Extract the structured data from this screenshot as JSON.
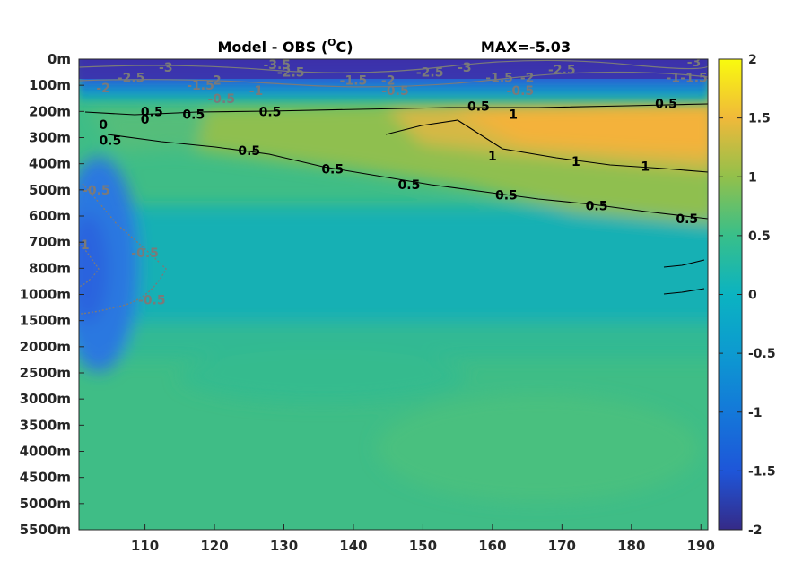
{
  "chart_data": {
    "type": "heatmap",
    "title": "Model - OBS (°C)",
    "title_main": "Model - OBS (",
    "title_sup": "O",
    "title_unit": "C)",
    "max_annotation": "MAX=-5.03",
    "xlabel": "",
    "ylabel": "",
    "x_ticks": [
      "110",
      "120",
      "130",
      "140",
      "150",
      "160",
      "170",
      "180",
      "190"
    ],
    "x_tick_values": [
      110,
      120,
      130,
      140,
      150,
      160,
      170,
      180,
      190
    ],
    "xlim": [
      100.5,
      191
    ],
    "y_ticks": [
      "0m",
      "100m",
      "200m",
      "300m",
      "400m",
      "500m",
      "600m",
      "700m",
      "800m",
      "1000m",
      "1500m",
      "2000m",
      "2500m",
      "3000m",
      "3500m",
      "4000m",
      "4500m",
      "5000m",
      "5500m"
    ],
    "y_scale": "categorical depth levels (non-uniform)",
    "colorbar": {
      "ticks": [
        "2",
        "1.5",
        "1",
        "0.5",
        "0",
        "-0.5",
        "-1",
        "-1.5",
        "-2"
      ],
      "tick_values": [
        2,
        1.5,
        1,
        0.5,
        0,
        -0.5,
        -1,
        -1.5,
        -2
      ],
      "clim": [
        -2,
        2
      ],
      "colormap": "parula"
    },
    "contour_labels_black": [
      {
        "text": "0.5",
        "x": 111,
        "level": 2.0
      },
      {
        "text": "0.5",
        "x": 117,
        "level": 2.1
      },
      {
        "text": "0.5",
        "x": 128,
        "level": 2.0
      },
      {
        "text": "0.5",
        "x": 125,
        "level": 3.5
      },
      {
        "text": "0.5",
        "x": 137,
        "level": 4.2
      },
      {
        "text": "0.5",
        "x": 148,
        "level": 4.8
      },
      {
        "text": "0.5",
        "x": 158,
        "level": 1.8
      },
      {
        "text": "1",
        "x": 163,
        "level": 2.1
      },
      {
        "text": "1",
        "x": 160,
        "level": 3.7
      },
      {
        "text": "1",
        "x": 172,
        "level": 3.9
      },
      {
        "text": "1",
        "x": 182,
        "level": 4.1
      },
      {
        "text": "0.5",
        "x": 185,
        "level": 1.7
      },
      {
        "text": "0.5",
        "x": 162,
        "level": 5.2
      },
      {
        "text": "0.5",
        "x": 175,
        "level": 5.6
      },
      {
        "text": "0.5",
        "x": 188,
        "level": 6.1
      },
      {
        "text": "0.5",
        "x": 105,
        "level": 3.1
      },
      {
        "text": "0",
        "x": 110,
        "level": 2.3
      },
      {
        "text": "0",
        "x": 104,
        "level": 2.5
      }
    ],
    "contour_labels_gray": [
      {
        "text": "-2.5",
        "x": 108,
        "level": 0.7
      },
      {
        "text": "-3",
        "x": 113,
        "level": 0.3
      },
      {
        "text": "-2",
        "x": 104,
        "level": 1.1
      },
      {
        "text": "-1.5",
        "x": 118,
        "level": 1.0
      },
      {
        "text": "-2",
        "x": 120,
        "level": 0.8
      },
      {
        "text": "-0.5",
        "x": 121,
        "level": 1.5
      },
      {
        "text": "-1",
        "x": 126,
        "level": 1.2
      },
      {
        "text": "-3.5",
        "x": 129,
        "level": 0.2
      },
      {
        "text": "-2.5",
        "x": 131,
        "level": 0.5
      },
      {
        "text": "-1.5",
        "x": 140,
        "level": 0.8
      },
      {
        "text": "-2",
        "x": 145,
        "level": 0.8
      },
      {
        "text": "-0.5",
        "x": 146,
        "level": 1.2
      },
      {
        "text": "-2.5",
        "x": 151,
        "level": 0.5
      },
      {
        "text": "-3",
        "x": 156,
        "level": 0.3
      },
      {
        "text": "-1.5",
        "x": 161,
        "level": 0.7
      },
      {
        "text": "-2",
        "x": 165,
        "level": 0.7
      },
      {
        "text": "-2.5",
        "x": 170,
        "level": 0.4
      },
      {
        "text": "-0.5",
        "x": 164,
        "level": 1.2
      },
      {
        "text": "-1",
        "x": 186,
        "level": 0.7
      },
      {
        "text": "-1.5",
        "x": 189,
        "level": 0.7
      },
      {
        "text": "-3",
        "x": 189,
        "level": 0.1
      },
      {
        "text": "-0.5",
        "x": 103,
        "level": 5.0
      },
      {
        "text": "-0.5",
        "x": 110,
        "level": 7.4
      },
      {
        "text": "-0.5",
        "x": 111,
        "level": 9.2
      },
      {
        "text": "-1",
        "x": 101,
        "level": 7.1
      }
    ],
    "colors": {
      "surface_min": "#3b2fa6",
      "warm_band": "#f2b43a",
      "background_field": "#3dbf8a"
    }
  }
}
